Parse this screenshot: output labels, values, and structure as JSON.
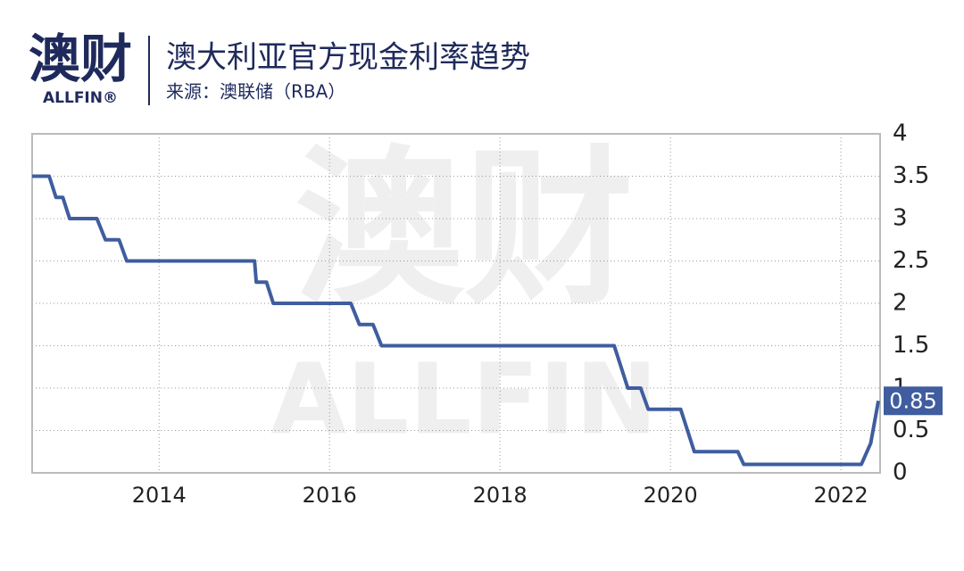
{
  "logo": {
    "cn": "澳财",
    "en": "ALLFIN®"
  },
  "watermark": {
    "cn": "澳财",
    "en": "ALLFIN"
  },
  "chart_data": {
    "type": "line",
    "title": "澳大利亚官方现金利率趋势",
    "subtitle": "来源：澳联储（RBA）",
    "x": [
      2012.51,
      2012.71,
      2012.79,
      2012.87,
      2012.95,
      2013.27,
      2013.37,
      2013.53,
      2013.62,
      2015.12,
      2015.14,
      2015.26,
      2015.34,
      2016.25,
      2016.35,
      2016.51,
      2016.61,
      2019.34,
      2019.5,
      2019.65,
      2019.74,
      2020.12,
      2020.28,
      2020.79,
      2020.86,
      2022.24,
      2022.35,
      2022.44
    ],
    "values": [
      3.5,
      3.5,
      3.25,
      3.25,
      3,
      3,
      2.75,
      2.75,
      2.5,
      2.5,
      2.25,
      2.25,
      2,
      2,
      1.75,
      1.75,
      1.5,
      1.5,
      1,
      1,
      0.75,
      0.75,
      0.25,
      0.25,
      0.1,
      0.1,
      0.35,
      0.85
    ],
    "color": "#3f5d9f",
    "xlim": [
      2012.51,
      2022.46
    ],
    "xticks": [
      2014,
      2016,
      2018,
      2020,
      2022
    ],
    "ylim": [
      0,
      4
    ],
    "yticks": [
      0,
      0.5,
      1,
      1.5,
      2,
      2.5,
      3,
      3.5,
      4
    ],
    "grid": true
  }
}
